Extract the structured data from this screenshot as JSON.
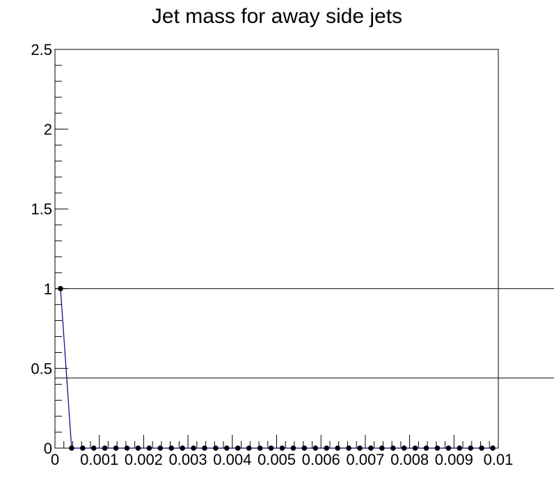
{
  "chart_data": {
    "type": "line",
    "title": "Jet mass for away side jets",
    "xlabel": "",
    "ylabel": "",
    "xlim": [
      0,
      0.01
    ],
    "ylim": [
      0,
      2.5
    ],
    "x_tick_labels": [
      "0",
      "0.001",
      "0.002",
      "0.003",
      "0.004",
      "0.005",
      "0.006",
      "0.007",
      "0.008",
      "0.009",
      "0.01"
    ],
    "y_tick_labels": [
      "0",
      "0.5",
      "1",
      "1.5",
      "2",
      "2.5"
    ],
    "grid": false,
    "legend": "none",
    "series": [
      {
        "x": [
          0.000125,
          0.000375,
          0.000625,
          0.000875,
          0.001125,
          0.001375,
          0.001625,
          0.001875,
          0.002125,
          0.002375,
          0.002625,
          0.002875,
          0.003125,
          0.003375,
          0.003625,
          0.003875,
          0.004125,
          0.004375,
          0.004625,
          0.004875,
          0.005125,
          0.005375,
          0.005625,
          0.005875,
          0.006125,
          0.006375,
          0.006625,
          0.006875,
          0.007125,
          0.007375,
          0.007625,
          0.007875,
          0.008125,
          0.008375,
          0.008625,
          0.008875,
          0.009125,
          0.009375,
          0.009625,
          0.009875
        ],
        "values": [
          1,
          0,
          0,
          0,
          0,
          0,
          0,
          0,
          0,
          0,
          0,
          0,
          0,
          0,
          0,
          0,
          0,
          0,
          0,
          0,
          0,
          0,
          0,
          0,
          0,
          0,
          0,
          0,
          0,
          0,
          0,
          0,
          0,
          0,
          0,
          0,
          0,
          0,
          0,
          0
        ],
        "line_color": "#000080",
        "marker_color": "#000000"
      }
    ],
    "reference_lines": [
      {
        "orientation": "horizontal",
        "value": 1.0
      },
      {
        "orientation": "horizontal",
        "value": 0.44
      }
    ]
  },
  "colors": {
    "background": "#ffffff",
    "axis": "#000000",
    "line": "#000080",
    "marker": "#000000"
  }
}
